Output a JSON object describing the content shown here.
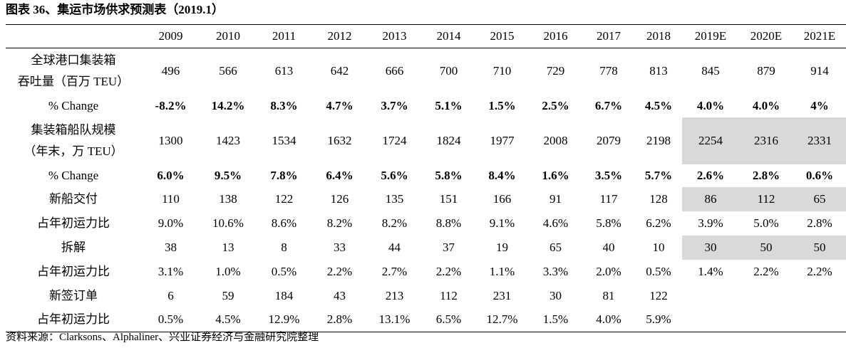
{
  "title": "图表 36、集运市场供求预测表（2019.1）",
  "header": [
    "",
    "2009",
    "2010",
    "2011",
    "2012",
    "2013",
    "2014",
    "2015",
    "2016",
    "2017",
    "2018",
    "2019E",
    "2020E",
    "2021E"
  ],
  "rows": [
    {
      "label": [
        "全球港口集装箱",
        "吞吐量（百万 TEU）"
      ],
      "bold": false,
      "shaded": false,
      "values": [
        "496",
        "566",
        "613",
        "642",
        "666",
        "700",
        "710",
        "729",
        "778",
        "813",
        "845",
        "879",
        "914"
      ]
    },
    {
      "label": [
        "% Change"
      ],
      "bold": true,
      "shaded": false,
      "values": [
        "-8.2%",
        "14.2%",
        "8.3%",
        "4.7%",
        "3.7%",
        "5.1%",
        "1.5%",
        "2.5%",
        "6.7%",
        "4.5%",
        "4.0%",
        "4.0%",
        "4%"
      ]
    },
    {
      "label": [
        "集装箱船队规模",
        "（年末，万 TEU）"
      ],
      "bold": false,
      "shaded": true,
      "values": [
        "1300",
        "1423",
        "1534",
        "1632",
        "1724",
        "1824",
        "1977",
        "2008",
        "2079",
        "2198",
        "2254",
        "2316",
        "2331"
      ]
    },
    {
      "label": [
        "% Change"
      ],
      "bold": true,
      "shaded": false,
      "values": [
        "6.0%",
        "9.5%",
        "7.8%",
        "6.4%",
        "5.6%",
        "5.8%",
        "8.4%",
        "1.6%",
        "3.5%",
        "5.7%",
        "2.6%",
        "2.8%",
        "0.6%"
      ]
    },
    {
      "label": [
        "新船交付"
      ],
      "bold": false,
      "shaded": true,
      "values": [
        "110",
        "138",
        "122",
        "126",
        "135",
        "151",
        "166",
        "91",
        "117",
        "128",
        "86",
        "112",
        "65"
      ]
    },
    {
      "label": [
        "占年初运力比"
      ],
      "bold": false,
      "shaded": false,
      "values": [
        "9.0%",
        "10.6%",
        "8.6%",
        "8.2%",
        "8.2%",
        "8.8%",
        "9.1%",
        "4.6%",
        "5.8%",
        "6.2%",
        "3.9%",
        "5.0%",
        "2.8%"
      ]
    },
    {
      "label": [
        "拆解"
      ],
      "bold": false,
      "shaded": true,
      "values": [
        "38",
        "13",
        "8",
        "33",
        "44",
        "37",
        "19",
        "65",
        "40",
        "10",
        "30",
        "50",
        "50"
      ]
    },
    {
      "label": [
        "占年初运力比"
      ],
      "bold": false,
      "shaded": false,
      "values": [
        "3.1%",
        "1.0%",
        "0.5%",
        "2.2%",
        "2.7%",
        "2.2%",
        "1.1%",
        "3.3%",
        "2.0%",
        "0.5%",
        "1.4%",
        "2.2%",
        "2.2%"
      ]
    },
    {
      "label": [
        "新签订单"
      ],
      "bold": false,
      "shaded": false,
      "values": [
        "6",
        "59",
        "184",
        "43",
        "213",
        "112",
        "231",
        "30",
        "81",
        "122",
        "",
        "",
        ""
      ]
    },
    {
      "label": [
        "占年初运力比"
      ],
      "bold": false,
      "shaded": false,
      "values": [
        "0.5%",
        "4.5%",
        "12.9%",
        "2.8%",
        "13.1%",
        "6.5%",
        "12.7%",
        "1.5%",
        "4.0%",
        "5.9%",
        "",
        "",
        ""
      ]
    }
  ],
  "row_heights": [
    65,
    32,
    66,
    32,
    34,
    34,
    34,
    34,
    34,
    34
  ],
  "shaded_columns_from": 10,
  "source": "资料来源：Clarksons、Alphaliner、兴业证券经济与金融研究院整理"
}
